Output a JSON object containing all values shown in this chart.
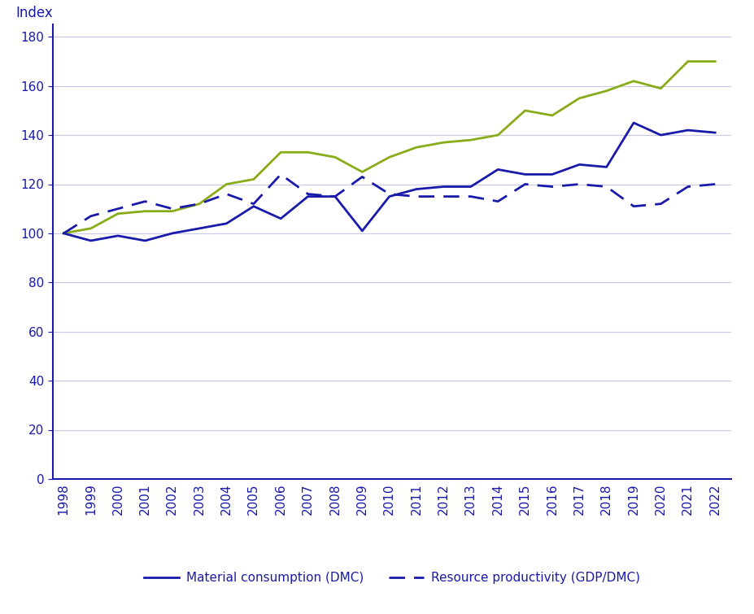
{
  "years": [
    1998,
    1999,
    2000,
    2001,
    2002,
    2003,
    2004,
    2005,
    2006,
    2007,
    2008,
    2009,
    2010,
    2011,
    2012,
    2013,
    2014,
    2015,
    2016,
    2017,
    2018,
    2019,
    2020,
    2021,
    2022
  ],
  "dmc": [
    100,
    97,
    99,
    97,
    100,
    102,
    104,
    111,
    106,
    115,
    115,
    101,
    115,
    118,
    119,
    119,
    126,
    124,
    124,
    128,
    127,
    145,
    140,
    142,
    141
  ],
  "gdp": [
    100,
    102,
    108,
    109,
    109,
    112,
    120,
    122,
    133,
    133,
    131,
    125,
    131,
    135,
    137,
    138,
    140,
    150,
    148,
    155,
    158,
    162,
    159,
    170,
    170
  ],
  "resource_productivity": [
    100,
    107,
    110,
    113,
    110,
    112,
    116,
    112,
    124,
    116,
    115,
    123,
    116,
    115,
    115,
    115,
    113,
    120,
    119,
    120,
    119,
    111,
    112,
    119,
    120
  ],
  "dmc_color": "#1a1aaa",
  "gdp_color": "#8aab18",
  "rp_color": "#1a1aaa",
  "spine_color": "#1a1aaa",
  "ylabel": "Index",
  "ylim": [
    0,
    185
  ],
  "yticks": [
    0,
    20,
    40,
    60,
    80,
    100,
    120,
    140,
    160,
    180
  ],
  "legend_dmc": "Material consumption (DMC)",
  "legend_rp": "Resource productivity (GDP/DMC)",
  "bg_color": "#ffffff",
  "grid_color": "#c8c8e8",
  "tick_color": "#1a1aaa",
  "label_color": "#1a1aaa"
}
